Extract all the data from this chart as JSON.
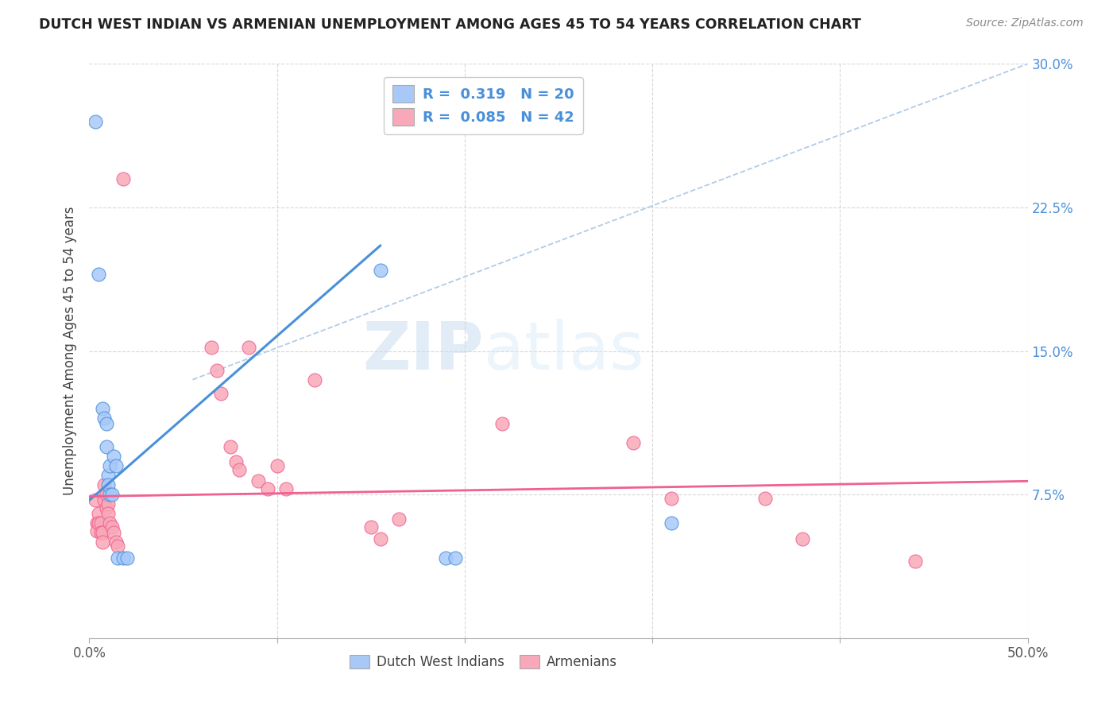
{
  "title": "DUTCH WEST INDIAN VS ARMENIAN UNEMPLOYMENT AMONG AGES 45 TO 54 YEARS CORRELATION CHART",
  "source": "Source: ZipAtlas.com",
  "ylabel": "Unemployment Among Ages 45 to 54 years",
  "xlim": [
    0.0,
    0.5
  ],
  "ylim": [
    0.0,
    0.3
  ],
  "dwi_color": "#a8c8f8",
  "arm_color": "#f8a8b8",
  "dwi_line_color": "#4a90d9",
  "arm_line_color": "#f06090",
  "dwi_R": 0.319,
  "dwi_N": 20,
  "arm_R": 0.085,
  "arm_N": 42,
  "legend_text_color": "#4a90d9",
  "watermark": "ZIPatlas",
  "dwi_line": [
    [
      0.0,
      0.072
    ],
    [
      0.155,
      0.205
    ]
  ],
  "arm_line": [
    [
      0.0,
      0.074
    ],
    [
      0.5,
      0.082
    ]
  ],
  "dash_line": [
    [
      0.055,
      0.135
    ],
    [
      0.5,
      0.3
    ]
  ],
  "dwi_points": [
    [
      0.003,
      0.27
    ],
    [
      0.005,
      0.19
    ],
    [
      0.007,
      0.12
    ],
    [
      0.008,
      0.115
    ],
    [
      0.009,
      0.1
    ],
    [
      0.009,
      0.112
    ],
    [
      0.01,
      0.085
    ],
    [
      0.01,
      0.08
    ],
    [
      0.011,
      0.075
    ],
    [
      0.011,
      0.09
    ],
    [
      0.012,
      0.075
    ],
    [
      0.013,
      0.095
    ],
    [
      0.014,
      0.09
    ],
    [
      0.015,
      0.042
    ],
    [
      0.018,
      0.042
    ],
    [
      0.02,
      0.042
    ],
    [
      0.155,
      0.192
    ],
    [
      0.19,
      0.042
    ],
    [
      0.195,
      0.042
    ],
    [
      0.31,
      0.06
    ]
  ],
  "arm_points": [
    [
      0.003,
      0.072
    ],
    [
      0.004,
      0.06
    ],
    [
      0.004,
      0.056
    ],
    [
      0.005,
      0.065
    ],
    [
      0.005,
      0.06
    ],
    [
      0.006,
      0.06
    ],
    [
      0.006,
      0.055
    ],
    [
      0.007,
      0.055
    ],
    [
      0.007,
      0.05
    ],
    [
      0.008,
      0.08
    ],
    [
      0.008,
      0.072
    ],
    [
      0.009,
      0.068
    ],
    [
      0.009,
      0.075
    ],
    [
      0.01,
      0.07
    ],
    [
      0.01,
      0.065
    ],
    [
      0.011,
      0.06
    ],
    [
      0.012,
      0.058
    ],
    [
      0.013,
      0.055
    ],
    [
      0.014,
      0.05
    ],
    [
      0.015,
      0.048
    ],
    [
      0.018,
      0.24
    ],
    [
      0.065,
      0.152
    ],
    [
      0.068,
      0.14
    ],
    [
      0.07,
      0.128
    ],
    [
      0.075,
      0.1
    ],
    [
      0.078,
      0.092
    ],
    [
      0.08,
      0.088
    ],
    [
      0.085,
      0.152
    ],
    [
      0.09,
      0.082
    ],
    [
      0.095,
      0.078
    ],
    [
      0.1,
      0.09
    ],
    [
      0.105,
      0.078
    ],
    [
      0.12,
      0.135
    ],
    [
      0.15,
      0.058
    ],
    [
      0.155,
      0.052
    ],
    [
      0.165,
      0.062
    ],
    [
      0.22,
      0.112
    ],
    [
      0.29,
      0.102
    ],
    [
      0.31,
      0.073
    ],
    [
      0.36,
      0.073
    ],
    [
      0.38,
      0.052
    ],
    [
      0.44,
      0.04
    ]
  ],
  "background_color": "#ffffff",
  "grid_color": "#d8d8d8"
}
